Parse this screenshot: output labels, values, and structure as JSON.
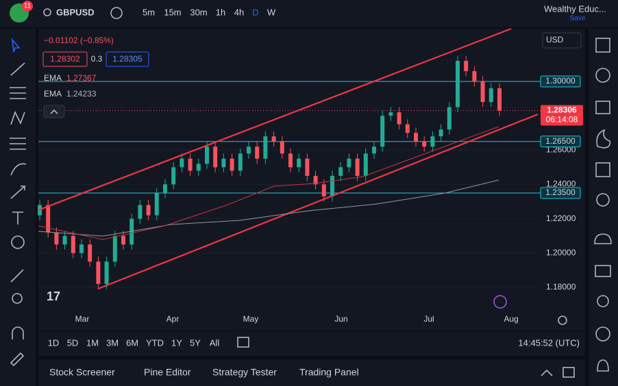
{
  "toolbar": {
    "badge": "11",
    "symbol": "GBPUSD",
    "intervals": [
      "5m",
      "15m",
      "30m",
      "1h",
      "4h",
      "D",
      "W"
    ],
    "account": "Wealthy Educ...",
    "save": "Save"
  },
  "legend": {
    "change": "−0.01102 (−0.85%)",
    "bid": "1.28302",
    "spread": "0.3",
    "ask": "1.28305",
    "ema": [
      {
        "name": "EMA",
        "value": "1.27367"
      },
      {
        "name": "EMA",
        "value": "1.24233"
      }
    ]
  },
  "chart_data": {
    "type": "candlestick",
    "currency": "USD",
    "months": [
      "Mar",
      "Apr",
      "May",
      "Jun",
      "Jul",
      "Aug"
    ],
    "open": [
      1.222,
      1.228,
      1.212,
      1.205,
      1.21,
      1.2,
      1.205,
      1.195,
      1.182,
      1.195,
      1.21,
      1.205,
      1.22,
      1.228,
      1.222,
      1.235,
      1.24,
      1.25,
      1.255,
      1.248,
      1.252,
      1.262,
      1.25,
      1.255,
      1.248,
      1.258,
      1.262,
      1.255,
      1.268,
      1.265,
      1.258,
      1.25,
      1.255,
      1.245,
      1.24,
      1.233,
      1.245,
      1.25,
      1.255,
      1.245,
      1.258,
      1.262,
      1.28,
      1.282,
      1.275,
      1.27,
      1.265,
      1.262,
      1.268,
      1.272,
      1.285,
      1.312,
      1.306,
      1.3,
      1.288,
      1.296
    ],
    "high": [
      1.231,
      1.231,
      1.215,
      1.213,
      1.213,
      1.208,
      1.208,
      1.198,
      1.198,
      1.213,
      1.213,
      1.223,
      1.231,
      1.231,
      1.238,
      1.243,
      1.253,
      1.258,
      1.258,
      1.255,
      1.265,
      1.265,
      1.258,
      1.258,
      1.261,
      1.265,
      1.265,
      1.271,
      1.271,
      1.268,
      1.261,
      1.258,
      1.258,
      1.248,
      1.243,
      1.248,
      1.253,
      1.258,
      1.258,
      1.261,
      1.265,
      1.283,
      1.285,
      1.285,
      1.278,
      1.273,
      1.268,
      1.271,
      1.275,
      1.288,
      1.315,
      1.315,
      1.309,
      1.303,
      1.299,
      1.299
    ],
    "low": [
      1.219,
      1.209,
      1.202,
      1.202,
      1.197,
      1.197,
      1.192,
      1.179,
      1.179,
      1.192,
      1.202,
      1.202,
      1.217,
      1.219,
      1.219,
      1.232,
      1.237,
      1.247,
      1.245,
      1.245,
      1.249,
      1.247,
      1.247,
      1.245,
      1.245,
      1.255,
      1.252,
      1.252,
      1.262,
      1.255,
      1.247,
      1.247,
      1.242,
      1.237,
      1.23,
      1.23,
      1.242,
      1.247,
      1.242,
      1.242,
      1.255,
      1.259,
      1.277,
      1.272,
      1.267,
      1.262,
      1.259,
      1.259,
      1.265,
      1.269,
      1.282,
      1.303,
      1.297,
      1.285,
      1.285,
      1.28
    ],
    "close": [
      1.228,
      1.212,
      1.205,
      1.21,
      1.2,
      1.205,
      1.195,
      1.182,
      1.195,
      1.21,
      1.205,
      1.22,
      1.228,
      1.222,
      1.235,
      1.24,
      1.25,
      1.255,
      1.248,
      1.252,
      1.262,
      1.25,
      1.255,
      1.248,
      1.258,
      1.262,
      1.255,
      1.268,
      1.265,
      1.258,
      1.25,
      1.255,
      1.245,
      1.24,
      1.233,
      1.245,
      1.25,
      1.255,
      1.245,
      1.258,
      1.262,
      1.28,
      1.282,
      1.275,
      1.27,
      1.265,
      1.262,
      1.268,
      1.272,
      1.285,
      1.312,
      1.306,
      1.3,
      1.288,
      1.296,
      1.283
    ],
    "up_color": "#22ab94",
    "down_color": "#f7525f",
    "ylim": [
      1.166,
      1.3307
    ],
    "yticks": [
      {
        "value": 1.18,
        "label": "1.18000"
      },
      {
        "value": 1.2,
        "label": "1.20000"
      },
      {
        "value": 1.22,
        "label": "1.22000"
      },
      {
        "value": 1.24,
        "label": "1.24000"
      },
      {
        "value": 1.26,
        "label": "1.26000"
      }
    ],
    "levels": [
      {
        "value": 1.3,
        "label": "1.30000"
      },
      {
        "value": 1.265,
        "label": "1.26500"
      },
      {
        "value": 1.235,
        "label": "1.23500"
      }
    ],
    "last_price": {
      "value": 1.28306,
      "label": "1.28306",
      "countdown": "06:14:08"
    }
  },
  "timeframe": {
    "ranges": [
      "1D",
      "5D",
      "1M",
      "3M",
      "6M",
      "YTD",
      "1Y",
      "5Y",
      "All"
    ],
    "clock": "14:45:52 (UTC)"
  },
  "bottom_panel": {
    "tabs": [
      "Stock Screener",
      "Pine Editor",
      "Strategy Tester",
      "Trading Panel"
    ]
  }
}
